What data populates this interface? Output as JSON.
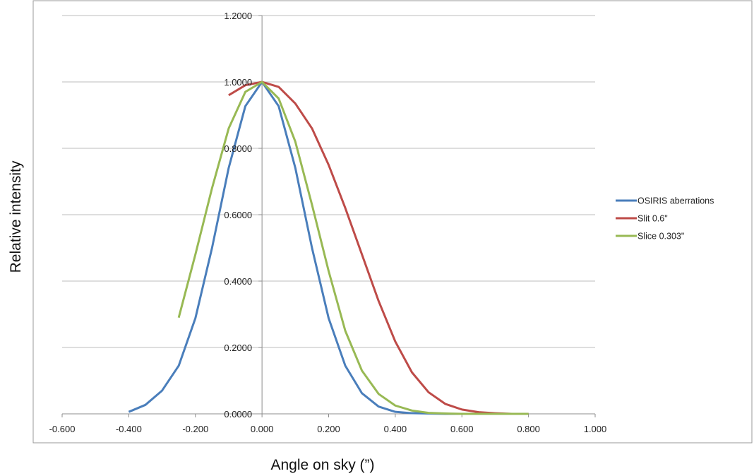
{
  "chart_data": {
    "type": "line",
    "title": "",
    "xlabel": "Angle on sky (”)",
    "ylabel": "Relative intensity",
    "xlim": [
      -0.6,
      1.0
    ],
    "ylim": [
      0.0,
      1.2
    ],
    "x_ticks": [
      "-0.600",
      "-0.400",
      "-0.200",
      "0.000",
      "0.200",
      "0.400",
      "0.600",
      "0.800",
      "1.000"
    ],
    "y_ticks": [
      "0.0000",
      "0.2000",
      "0.4000",
      "0.6000",
      "0.8000",
      "1.0000",
      "1.2000"
    ],
    "grid": "horizontal",
    "legend_position": "right",
    "series": [
      {
        "name": "OSIRIS aberrations",
        "color": "#4a7ebb",
        "x": [
          -0.4,
          -0.35,
          -0.3,
          -0.25,
          -0.2,
          -0.15,
          -0.1,
          -0.05,
          0.0,
          0.05,
          0.1,
          0.15,
          0.2,
          0.25,
          0.3,
          0.35,
          0.4,
          0.45,
          0.5,
          0.55,
          0.6,
          0.65,
          0.7,
          0.75,
          0.8
        ],
        "values": [
          0.006,
          0.027,
          0.07,
          0.145,
          0.288,
          0.5,
          0.741,
          0.927,
          1.0,
          0.927,
          0.741,
          0.5,
          0.288,
          0.145,
          0.062,
          0.022,
          0.006,
          0.002,
          0.001,
          0.0,
          0.0,
          0.0,
          0.0,
          0.0,
          0.0
        ]
      },
      {
        "name": "Slit 0.6\"",
        "color": "#be4b48",
        "x": [
          -0.1,
          -0.05,
          0.0,
          0.05,
          0.1,
          0.15,
          0.2,
          0.25,
          0.3,
          0.35,
          0.4,
          0.45,
          0.5,
          0.55,
          0.6,
          0.65,
          0.7,
          0.75,
          0.8
        ],
        "values": [
          0.96,
          0.99,
          1.0,
          0.985,
          0.935,
          0.86,
          0.75,
          0.62,
          0.48,
          0.34,
          0.218,
          0.125,
          0.065,
          0.03,
          0.013,
          0.005,
          0.002,
          0.0,
          0.0
        ]
      },
      {
        "name": "Slice 0.303\"",
        "color": "#98b954",
        "x": [
          -0.25,
          -0.2,
          -0.15,
          -0.1,
          -0.05,
          0.0,
          0.05,
          0.1,
          0.15,
          0.2,
          0.25,
          0.3,
          0.35,
          0.4,
          0.45,
          0.5,
          0.55,
          0.6,
          0.65,
          0.7,
          0.75,
          0.8
        ],
        "values": [
          0.29,
          0.48,
          0.68,
          0.86,
          0.97,
          1.0,
          0.95,
          0.82,
          0.63,
          0.43,
          0.25,
          0.13,
          0.06,
          0.025,
          0.01,
          0.003,
          0.001,
          0.0,
          0.0,
          0.0,
          0.0,
          0.0
        ]
      }
    ]
  }
}
